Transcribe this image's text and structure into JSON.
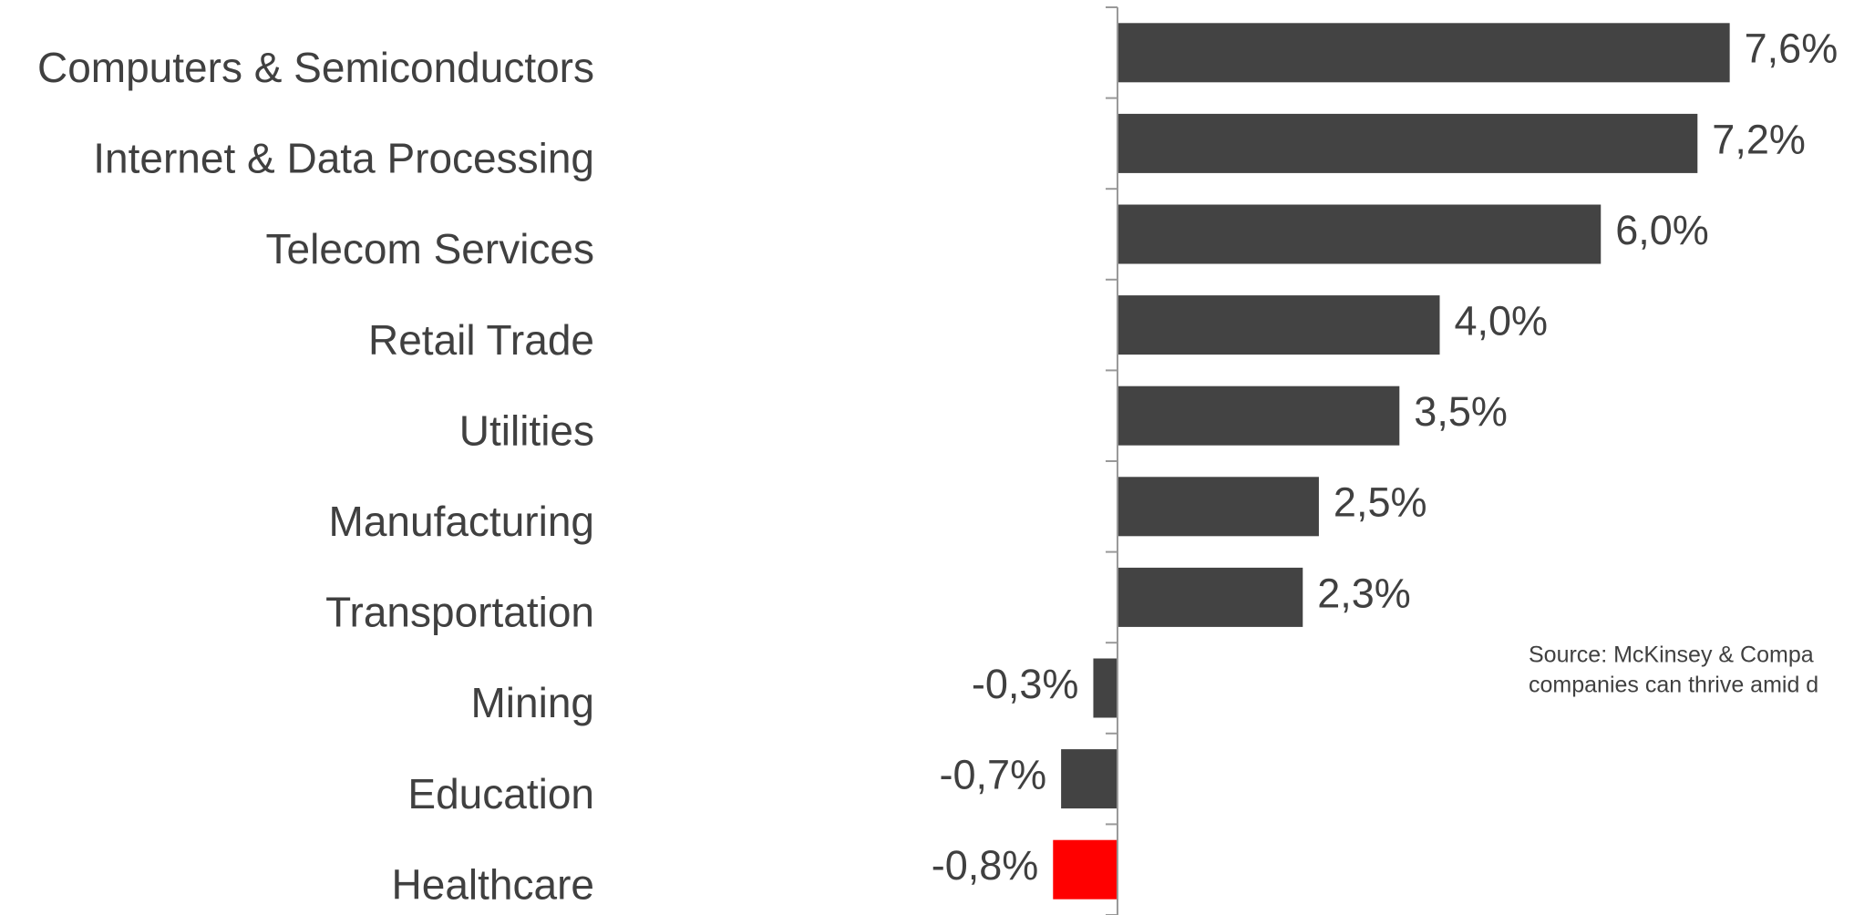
{
  "chart_data": {
    "type": "hbar",
    "categories": [
      "Computers & Semiconductors",
      "Internet & Data Processing",
      "Telecom Services",
      "Retail Trade",
      "Utilities",
      "Manufacturing",
      "Transportation",
      "Mining",
      "Education",
      "Healthcare"
    ],
    "values": [
      7.6,
      7.2,
      6.0,
      4.0,
      3.5,
      2.5,
      2.3,
      -0.3,
      -0.7,
      -0.8
    ],
    "value_labels": [
      "7,6%",
      "7,2%",
      "6,0%",
      "4,0%",
      "3,5%",
      "2,5%",
      "2,3%",
      "-0,3%",
      "-0,7%",
      "-0,8%"
    ],
    "colors": [
      "#434343",
      "#434343",
      "#434343",
      "#434343",
      "#434343",
      "#434343",
      "#434343",
      "#434343",
      "#434343",
      "#ff0000"
    ],
    "xlim": [
      -1,
      8
    ],
    "annotations": [
      "Source:  McKinsey &  Compa",
      "companies can thrive amid d"
    ]
  }
}
